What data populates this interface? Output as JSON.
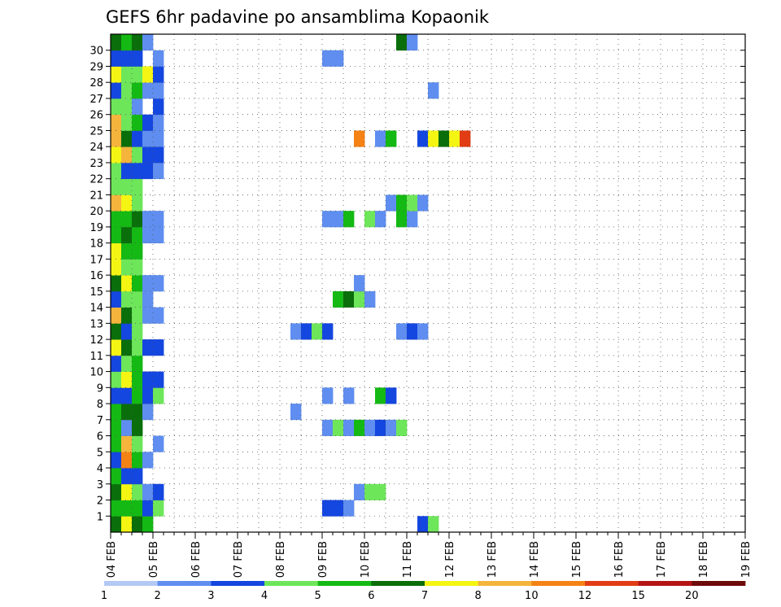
{
  "chart_data": {
    "type": "heatmap",
    "title": "GEFS 6hr padavine po ansamblima Kopaonik",
    "xlabel": "",
    "ylabel": "",
    "x_ticks": [
      "04 FEB",
      "05 FEB",
      "06 FEB",
      "07 FEB",
      "08 FEB",
      "09 FEB",
      "10 FEB",
      "11 FEB",
      "12 FEB",
      "13 FEB",
      "14 FEB",
      "15 FEB",
      "16 FEB",
      "17 FEB",
      "18 FEB",
      "19 FEB"
    ],
    "y_ticks": [
      "1",
      "2",
      "3",
      "4",
      "5",
      "6",
      "7",
      "8",
      "9",
      "10",
      "11",
      "12",
      "13",
      "14",
      "15",
      "16",
      "17",
      "18",
      "19",
      "20",
      "21",
      "22",
      "23",
      "24",
      "25",
      "26",
      "27",
      "28",
      "29",
      "30"
    ],
    "grid": "dotted",
    "colorbar": {
      "labels": [
        "1",
        "2",
        "3",
        "4",
        "5",
        "6",
        "7",
        "8",
        "10",
        "12",
        "15",
        "20"
      ],
      "colors": [
        "#b4c8f5",
        "#5f8ef0",
        "#1446e0",
        "#6ee65a",
        "#14b914",
        "#0a6e0a",
        "#f5f514",
        "#f5b43c",
        "#f58214",
        "#e13c14",
        "#b41414",
        "#6e0a0a"
      ]
    },
    "members": [
      {
        "member": 0,
        "cells": [
          [
            0,
            5
          ],
          [
            1,
            6
          ],
          [
            2,
            5
          ],
          [
            3,
            4
          ],
          [
            29,
            2
          ],
          [
            30,
            3
          ]
        ]
      },
      {
        "member": 1,
        "cells": [
          [
            0,
            4
          ],
          [
            1,
            4
          ],
          [
            2,
            4
          ],
          [
            3,
            2
          ],
          [
            4,
            3
          ],
          [
            20,
            2
          ],
          [
            21,
            2
          ],
          [
            22,
            1
          ]
        ]
      },
      {
        "member": 2,
        "cells": [
          [
            0,
            5
          ],
          [
            1,
            6
          ],
          [
            2,
            3
          ],
          [
            3,
            1
          ],
          [
            4,
            2
          ],
          [
            23,
            1
          ],
          [
            24,
            3
          ],
          [
            25,
            3
          ]
        ]
      },
      {
        "member": 3,
        "cells": [
          [
            0,
            4
          ],
          [
            1,
            2
          ],
          [
            2,
            2
          ]
        ]
      },
      {
        "member": 4,
        "cells": [
          [
            0,
            2
          ],
          [
            1,
            8
          ],
          [
            2,
            4
          ],
          [
            3,
            1
          ]
        ]
      },
      {
        "member": 5,
        "cells": [
          [
            0,
            4
          ],
          [
            1,
            7
          ],
          [
            2,
            3
          ],
          [
            4,
            1
          ]
        ]
      },
      {
        "member": 6,
        "cells": [
          [
            0,
            4
          ],
          [
            1,
            1
          ],
          [
            2,
            5
          ],
          [
            20,
            1
          ],
          [
            21,
            3
          ],
          [
            22,
            1
          ],
          [
            23,
            4
          ],
          [
            24,
            1
          ],
          [
            25,
            2
          ],
          [
            26,
            1
          ],
          [
            27,
            3
          ]
        ]
      },
      {
        "member": 7,
        "cells": [
          [
            0,
            4
          ],
          [
            1,
            5
          ],
          [
            2,
            5
          ],
          [
            3,
            1
          ],
          [
            17,
            1
          ]
        ]
      },
      {
        "member": 8,
        "cells": [
          [
            0,
            2
          ],
          [
            1,
            2
          ],
          [
            2,
            4
          ],
          [
            3,
            2
          ],
          [
            4,
            3
          ],
          [
            20,
            1
          ],
          [
            22,
            1
          ],
          [
            25,
            4
          ],
          [
            26,
            2
          ]
        ]
      },
      {
        "member": 9,
        "cells": [
          [
            0,
            3
          ],
          [
            1,
            6
          ],
          [
            2,
            4
          ],
          [
            3,
            2
          ],
          [
            4,
            2
          ]
        ]
      },
      {
        "member": 10,
        "cells": [
          [
            0,
            2
          ],
          [
            1,
            3
          ],
          [
            2,
            4
          ]
        ]
      },
      {
        "member": 11,
        "cells": [
          [
            0,
            6
          ],
          [
            1,
            5
          ],
          [
            2,
            3
          ],
          [
            3,
            2
          ],
          [
            4,
            2
          ]
        ]
      },
      {
        "member": 12,
        "cells": [
          [
            0,
            5
          ],
          [
            1,
            2
          ],
          [
            2,
            3
          ],
          [
            17,
            1
          ],
          [
            18,
            2
          ],
          [
            19,
            3
          ],
          [
            20,
            2
          ],
          [
            27,
            1
          ],
          [
            28,
            2
          ],
          [
            29,
            1
          ]
        ]
      },
      {
        "member": 13,
        "cells": [
          [
            0,
            7
          ],
          [
            1,
            5
          ],
          [
            2,
            3
          ],
          [
            3,
            1
          ],
          [
            4,
            1
          ]
        ]
      },
      {
        "member": 14,
        "cells": [
          [
            0,
            2
          ],
          [
            1,
            3
          ],
          [
            2,
            3
          ],
          [
            3,
            1
          ],
          [
            21,
            4
          ],
          [
            22,
            5
          ],
          [
            23,
            3
          ],
          [
            24,
            1
          ]
        ]
      },
      {
        "member": 15,
        "cells": [
          [
            0,
            5
          ],
          [
            1,
            6
          ],
          [
            2,
            4
          ],
          [
            3,
            1
          ],
          [
            4,
            1
          ],
          [
            23,
            1
          ]
        ]
      },
      {
        "member": 16,
        "cells": [
          [
            0,
            6
          ],
          [
            1,
            3
          ],
          [
            2,
            3
          ]
        ]
      },
      {
        "member": 17,
        "cells": [
          [
            0,
            6
          ],
          [
            1,
            4
          ],
          [
            2,
            4
          ]
        ]
      },
      {
        "member": 18,
        "cells": [
          [
            0,
            4
          ],
          [
            1,
            5
          ],
          [
            2,
            4
          ],
          [
            3,
            1
          ],
          [
            4,
            1
          ]
        ]
      },
      {
        "member": 19,
        "cells": [
          [
            0,
            4
          ],
          [
            1,
            4
          ],
          [
            2,
            5
          ],
          [
            3,
            1
          ],
          [
            4,
            1
          ],
          [
            20,
            1
          ],
          [
            21,
            1
          ],
          [
            22,
            4
          ],
          [
            24,
            3
          ],
          [
            25,
            1
          ],
          [
            27,
            4
          ],
          [
            28,
            1
          ]
        ]
      },
      {
        "member": 20,
        "cells": [
          [
            0,
            7
          ],
          [
            1,
            6
          ],
          [
            2,
            3
          ],
          [
            26,
            1
          ],
          [
            27,
            4
          ],
          [
            28,
            3
          ],
          [
            29,
            1
          ]
        ]
      },
      {
        "member": 21,
        "cells": [
          [
            0,
            3
          ],
          [
            1,
            3
          ],
          [
            2,
            3
          ]
        ]
      },
      {
        "member": 22,
        "cells": [
          [
            0,
            3
          ],
          [
            1,
            2
          ],
          [
            2,
            2
          ],
          [
            3,
            2
          ],
          [
            4,
            1
          ]
        ]
      },
      {
        "member": 23,
        "cells": [
          [
            0,
            6
          ],
          [
            1,
            7
          ],
          [
            2,
            3
          ],
          [
            3,
            2
          ],
          [
            4,
            2
          ]
        ]
      },
      {
        "member": 24,
        "cells": [
          [
            0,
            7
          ],
          [
            1,
            5
          ],
          [
            2,
            2
          ],
          [
            3,
            1
          ],
          [
            4,
            1
          ],
          [
            23,
            8
          ],
          [
            25,
            1
          ],
          [
            26,
            4
          ],
          [
            29,
            2
          ],
          [
            30,
            6
          ],
          [
            31,
            5
          ],
          [
            32,
            6
          ],
          [
            33,
            9
          ]
        ]
      },
      {
        "member": 25,
        "cells": [
          [
            0,
            7
          ],
          [
            1,
            3
          ],
          [
            2,
            4
          ],
          [
            3,
            2
          ],
          [
            4,
            1
          ]
        ]
      },
      {
        "member": 26,
        "cells": [
          [
            0,
            3
          ],
          [
            1,
            3
          ],
          [
            2,
            1
          ],
          [
            4,
            2
          ]
        ]
      },
      {
        "member": 27,
        "cells": [
          [
            0,
            2
          ],
          [
            1,
            3
          ],
          [
            2,
            4
          ],
          [
            3,
            1
          ],
          [
            4,
            1
          ],
          [
            30,
            1
          ]
        ]
      },
      {
        "member": 28,
        "cells": [
          [
            0,
            6
          ],
          [
            1,
            3
          ],
          [
            2,
            3
          ],
          [
            3,
            6
          ],
          [
            4,
            2
          ]
        ]
      },
      {
        "member": 29,
        "cells": [
          [
            0,
            2
          ],
          [
            1,
            2
          ],
          [
            2,
            2
          ],
          [
            4,
            1
          ],
          [
            20,
            1
          ],
          [
            21,
            1
          ]
        ]
      },
      {
        "member": 30,
        "cells": [
          [
            0,
            5
          ],
          [
            1,
            4
          ],
          [
            2,
            5
          ],
          [
            3,
            1
          ],
          [
            27,
            5
          ],
          [
            28,
            1
          ]
        ]
      }
    ]
  }
}
